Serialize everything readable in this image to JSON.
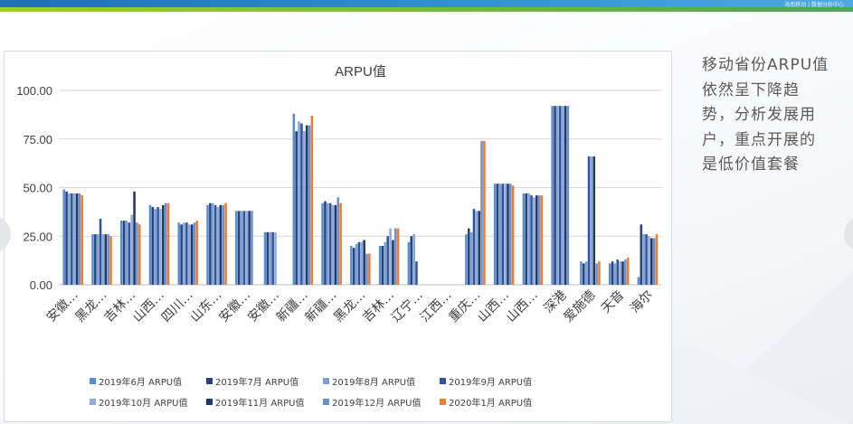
{
  "side_note": "移动省份ARPU值\n依然呈下降趋\n势，分析发展用\n户，重点开展的\n是低价值套餐",
  "top_banner_text": "海南移动 | 数据分析中心",
  "nav": {
    "prev_icon": "chevron-left-icon",
    "next_icon": "chevron-right-icon"
  },
  "chart_data": {
    "type": "bar",
    "title": "ARPU值",
    "xlabel": "",
    "ylabel": "",
    "ylim": [
      0,
      100
    ],
    "yticks": [
      "0.00",
      "25.00",
      "50.00",
      "75.00",
      "100.00"
    ],
    "grid": true,
    "legend_position": "bottom",
    "categories": [
      "安徽…",
      "黑龙…",
      "吉林…",
      "山西…",
      "四川…",
      "山东…",
      "安徽…",
      "安徽…",
      "新疆…",
      "新疆…",
      "黑龙…",
      "吉林…",
      "辽宁…",
      "江西…",
      "重庆…",
      "山西…",
      "山西…",
      "深港",
      "爱施德",
      "天音",
      "海尔"
    ],
    "series": [
      {
        "name": "2019年6月 ARPU值",
        "color": "#5b8cd6",
        "values": [
          49,
          26,
          33,
          41,
          32,
          41,
          38,
          27,
          88,
          42,
          20,
          20,
          22,
          null,
          26,
          52,
          47,
          92,
          12,
          11,
          4
        ]
      },
      {
        "name": "2019年7月 ARPU值",
        "color": "#264478",
        "values": [
          48,
          26,
          33,
          40,
          31,
          42,
          38,
          27,
          79,
          43,
          19,
          20,
          25,
          null,
          29,
          52,
          47,
          92,
          11,
          12,
          31
        ]
      },
      {
        "name": "2019年8月 ARPU值",
        "color": "#7f9fd6",
        "values": [
          47,
          26,
          33,
          39,
          32,
          42,
          38,
          27,
          84,
          42,
          21,
          22,
          26,
          null,
          27,
          52,
          47,
          92,
          12,
          11,
          26
        ]
      },
      {
        "name": "2019年9月 ARPU值",
        "color": "#2f5597",
        "values": [
          47,
          34,
          32,
          40,
          32,
          41,
          38,
          27,
          83,
          42,
          22,
          25,
          12,
          null,
          39,
          52,
          46,
          92,
          66,
          13,
          26
        ]
      },
      {
        "name": "2019年10月 ARPU值",
        "color": "#8faadc",
        "values": [
          47,
          26,
          36,
          39,
          31,
          40,
          38,
          27,
          79,
          41,
          22,
          29,
          null,
          null,
          38,
          52,
          45,
          92,
          66,
          12,
          25
        ]
      },
      {
        "name": "2019年11月 ARPU值",
        "color": "#203864",
        "values": [
          47,
          26,
          48,
          41,
          31,
          41,
          38,
          null,
          82,
          41,
          23,
          23,
          null,
          null,
          38,
          52,
          46,
          92,
          66,
          12,
          24
        ]
      },
      {
        "name": "2019年12月 ARPU值",
        "color": "#6b8fd0",
        "values": [
          47,
          26,
          32,
          42,
          32,
          41,
          38,
          null,
          82,
          45,
          16,
          29,
          null,
          null,
          74,
          52,
          46,
          92,
          11,
          13,
          24
        ]
      },
      {
        "name": "2020年1月 ARPU值",
        "color": "#ed7d31",
        "values": [
          46,
          25,
          31,
          42,
          33,
          42,
          null,
          null,
          87,
          42,
          16,
          29,
          null,
          null,
          74,
          51,
          46,
          null,
          12,
          14,
          26
        ]
      }
    ]
  }
}
